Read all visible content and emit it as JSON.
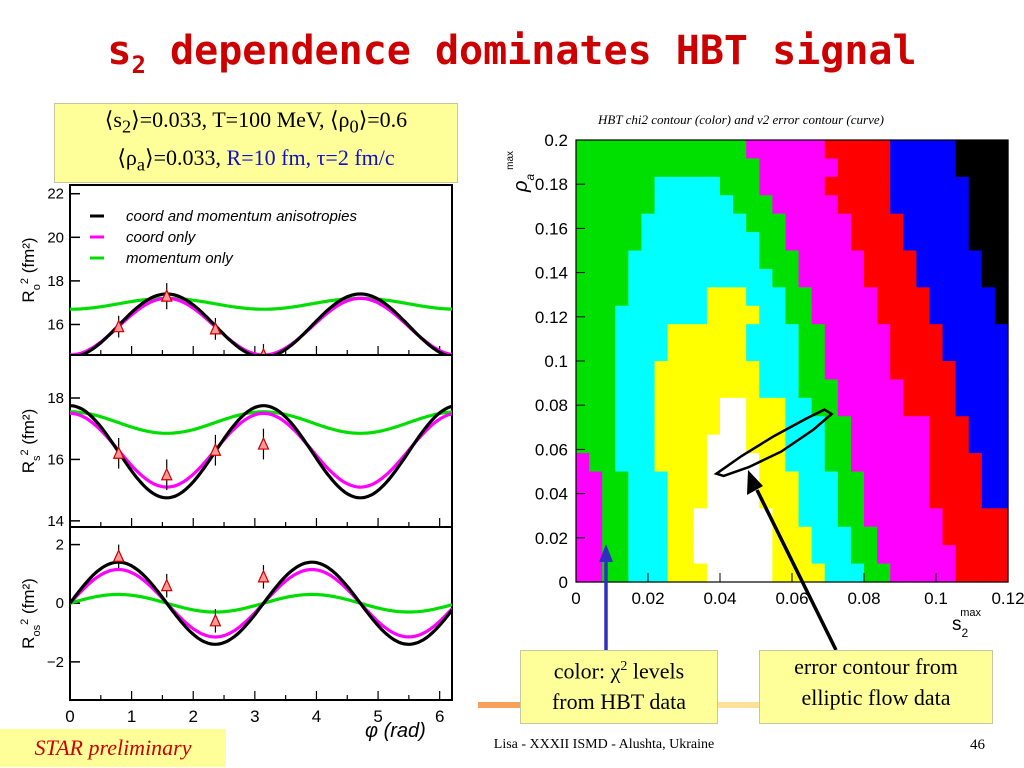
{
  "slide": {
    "title_main": "s",
    "title_sub": "2",
    "title_rest": " dependence dominates HBT signal",
    "params": {
      "line1_a": "⟨s",
      "line1_a_sub": "2",
      "line1_b": "⟩=0.033, T=100 MeV, ⟨ρ",
      "line1_b_sub": "0",
      "line1_c": "⟩=0.6",
      "line2_a": "⟨ρ",
      "line2_a_sub": "a",
      "line2_b": "⟩=0.033, ",
      "line2_blue": "R=10 fm, τ=2 fm/c"
    },
    "callout_left_a": "color: χ",
    "callout_left_sup": "2",
    "callout_left_b": " levels",
    "callout_left_c": "from HBT data",
    "callout_right_a": "error contour from",
    "callout_right_b": "elliptic flow data",
    "star_label": "STAR preliminary",
    "footer": "Lisa - XXXII ISMD - Alushta, Ukraine",
    "page_number": "46"
  },
  "chart_data": [
    {
      "type": "line",
      "title": "",
      "xlabel": "φ (rad)",
      "x_ticks": [
        "0",
        "1",
        "2",
        "3",
        "4",
        "5",
        "6"
      ],
      "xlim": [
        0,
        6.2
      ],
      "legend": [
        "coord and momentum anisotropies",
        "coord only",
        "momentum only"
      ],
      "legend_colors": [
        "#000000",
        "#ff00ff",
        "#00dd00"
      ],
      "panels": [
        {
          "ylabel": "R_o^2 (fm^2)",
          "ylabel_main": "R",
          "ylabel_sub": "o",
          "ylabel_sup": "2",
          "ylabel_unit": " (fm²)",
          "ylim": [
            14.6,
            22.4
          ],
          "y_ticks": [
            "16",
            "18",
            "20",
            "22"
          ],
          "series": [
            {
              "name": "coord and momentum anisotropies",
              "mean": 15.95,
              "amp": -1.45,
              "phase": 0.0
            },
            {
              "name": "coord only",
              "mean": 15.9,
              "amp": -1.3,
              "phase": 0.0
            },
            {
              "name": "momentum only",
              "mean": 16.95,
              "amp": -0.25,
              "phase": 0.0
            }
          ],
          "points": [
            [
              0.79,
              15.9,
              0.5
            ],
            [
              1.57,
              17.3,
              0.6
            ],
            [
              2.36,
              15.8,
              0.5
            ],
            [
              3.14,
              14.6,
              0.5
            ]
          ]
        },
        {
          "ylabel": "R_s^2 (fm^2)",
          "ylabel_main": "R",
          "ylabel_sub": "s",
          "ylabel_sup": "2",
          "ylabel_unit": " (fm²)",
          "ylim": [
            13.8,
            19.4
          ],
          "y_ticks": [
            "14",
            "16",
            "18"
          ],
          "series": [
            {
              "name": "coord and momentum anisotropies",
              "mean": 16.25,
              "amp": 1.5,
              "phase": 0.0
            },
            {
              "name": "coord only",
              "mean": 16.3,
              "amp": 1.2,
              "phase": 0.0
            },
            {
              "name": "momentum only",
              "mean": 17.2,
              "amp": 0.35,
              "phase": 0.0
            }
          ],
          "points": [
            [
              0.79,
              16.2,
              0.5
            ],
            [
              1.57,
              15.5,
              0.5
            ],
            [
              2.36,
              16.3,
              0.5
            ],
            [
              3.14,
              16.5,
              0.5
            ]
          ]
        },
        {
          "ylabel": "R_os^2 (fm^2)",
          "ylabel_main": "R",
          "ylabel_sub": "os",
          "ylabel_sup": "2",
          "ylabel_unit": " (fm²)",
          "ylim": [
            -3.3,
            2.6
          ],
          "y_ticks": [
            "2",
            "0",
            "-2"
          ],
          "series": [
            {
              "name": "coord and momentum anisotropies",
              "mean": 0.0,
              "amp": 1.4,
              "phase": 0.0
            },
            {
              "name": "coord only",
              "mean": 0.0,
              "amp": 1.15,
              "phase": 0.0
            },
            {
              "name": "momentum only",
              "mean": 0.0,
              "amp": 0.3,
              "phase": 0.0
            }
          ],
          "points": [
            [
              0.79,
              1.6,
              0.4
            ],
            [
              1.57,
              0.6,
              0.4
            ],
            [
              2.36,
              -0.6,
              0.4
            ],
            [
              3.14,
              0.9,
              0.4
            ]
          ]
        }
      ]
    },
    {
      "type": "heatmap",
      "title": "HBT chi2 contour (color) and v2 error contour (curve)",
      "xlabel": "s2max",
      "xlabel_main": "s",
      "xlabel_sub": "2",
      "xlabel_sup": "max",
      "ylabel": "ρa max",
      "ylabel_main": "ρ",
      "ylabel_sub": "a",
      "ylabel_sup": "max",
      "xlim": [
        0,
        0.12
      ],
      "ylim": [
        0,
        0.2
      ],
      "x_ticks": [
        "0",
        "0.02",
        "0.04",
        "0.06",
        "0.08",
        "0.1",
        "0.12"
      ],
      "y_ticks": [
        "0",
        "0.02",
        "0.04",
        "0.06",
        "0.08",
        "0.1",
        "0.12",
        "0.14",
        "0.16",
        "0.18",
        "0.2"
      ],
      "colors": {
        "0": "#ffffff",
        "1": "#ffff00",
        "2": "#00ffff",
        "3": "#00e000",
        "4": "#ff00ff",
        "5": "#ff0000",
        "6": "#0000ff",
        "7": "#000000"
      },
      "grid_rows_top_to_bottom": [
        "333333333333344444455555666667777",
        "333333333333334444445555666667777",
        "333333222223334444455555666666777",
        "333333222222333444445555666666777",
        "333332222222233344444555566666777",
        "333332222222223344444555566666777",
        "333322222222223334444455556666677",
        "333322222222222334444455556666677",
        "333322222211122233444445555666667",
        "333222222211112233444445555666667",
        "333222211111122223344444555566666",
        "333222211111122223344444555566666",
        "333222111111112223344444555556666",
        "333222111111112223334444455556666",
        "333222111110011122334444455556666",
        "333222111110011122233444444555666",
        "333222111100011122233444444555666",
        "433222111100001122233444444555566",
        "443322211100001112223344444555566",
        "443322211100001112223344444555566",
        "443322211000000112223344444455555",
        "443322211000000111222334444455555",
        "443322211000000111222334444445555",
        "443322211100000111122233444445555"
      ],
      "contour_points": [
        [
          0.039,
          0.049
        ],
        [
          0.046,
          0.057
        ],
        [
          0.055,
          0.066
        ],
        [
          0.064,
          0.074
        ],
        [
          0.069,
          0.078
        ],
        [
          0.071,
          0.076
        ],
        [
          0.066,
          0.069
        ],
        [
          0.057,
          0.059
        ],
        [
          0.048,
          0.052
        ],
        [
          0.041,
          0.048
        ],
        [
          0.039,
          0.049
        ]
      ]
    }
  ]
}
